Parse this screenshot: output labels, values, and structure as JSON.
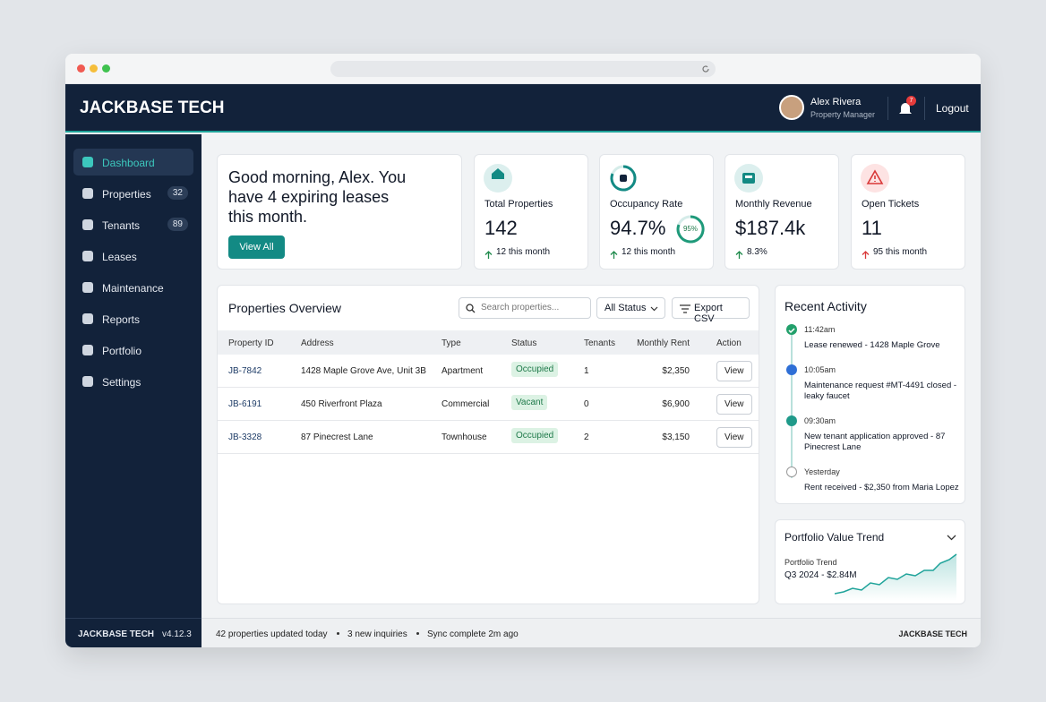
{
  "header": {
    "brand": "JACKBASE TECH",
    "user_name": "Alex Rivera",
    "user_role": "Property Manager",
    "notification_count": "7",
    "logout": "Logout"
  },
  "sidebar": {
    "items": [
      {
        "label": "Dashboard"
      },
      {
        "label": "Properties",
        "badge": "32"
      },
      {
        "label": "Tenants",
        "badge": "89"
      },
      {
        "label": "Leases"
      },
      {
        "label": "Maintenance"
      },
      {
        "label": "Reports"
      },
      {
        "label": "Portfolio"
      },
      {
        "label": "Settings"
      }
    ],
    "footer_brand": "JACKBASE TECH",
    "version": "v4.12.3"
  },
  "greeting": {
    "text": "Good morning, Alex. You have 4 expiring leases this month.",
    "button": "View All"
  },
  "stats": [
    {
      "label": "Total Properties",
      "value": "142",
      "change": "12 this month"
    },
    {
      "label": "Occupancy Rate",
      "value": "94.7%",
      "ring": "95%",
      "change": "12 this month"
    },
    {
      "label": "Monthly Revenue",
      "value": "$187.4k",
      "change": "8.3%"
    },
    {
      "label": "Open Tickets",
      "value": "11",
      "change": "95 this month"
    }
  ],
  "properties": {
    "title": "Properties Overview",
    "search_placeholder": "Search properties...",
    "filter": "All Status",
    "export": "Export CSV",
    "columns": [
      "Property ID",
      "Address",
      "Type",
      "Status",
      "Tenants",
      "Monthly Rent",
      "Action"
    ],
    "rows": [
      [
        "JB-7842",
        "1428 Maple Grove Ave, Unit 3B",
        "Apartment",
        "Occupied",
        "1",
        "$2,350",
        "View"
      ],
      [
        "JB-6191",
        "450 Riverfront Plaza",
        "Commercial",
        "Vacant",
        "0",
        "$6,900",
        "View"
      ],
      [
        "JB-3328",
        "87 Pinecrest Lane",
        "Townhouse",
        "Occupied",
        "2",
        "$3,150",
        "View"
      ]
    ]
  },
  "activity": {
    "title": "Recent Activity",
    "items": [
      {
        "time": "11:42am",
        "text": "Lease renewed - 1428 Maple Grove"
      },
      {
        "time": "10:05am",
        "text": "Maintenance request #MT-4491 closed - leaky faucet"
      },
      {
        "time": "09:30am",
        "text": "New tenant application approved - 87 Pinecrest Lane"
      },
      {
        "time": "Yesterday",
        "text": "Rent received - $2,350 from Maria Lopez"
      }
    ]
  },
  "trend": {
    "title": "Portfolio Value Trend",
    "label": "Portfolio Trend",
    "value": "Q3 2024 - $2.84M"
  },
  "status_bar": {
    "items": [
      "42 properties updated today",
      "3 new inquiries",
      "Sync complete 2m ago"
    ],
    "brand": "JACKBASE TECH"
  }
}
